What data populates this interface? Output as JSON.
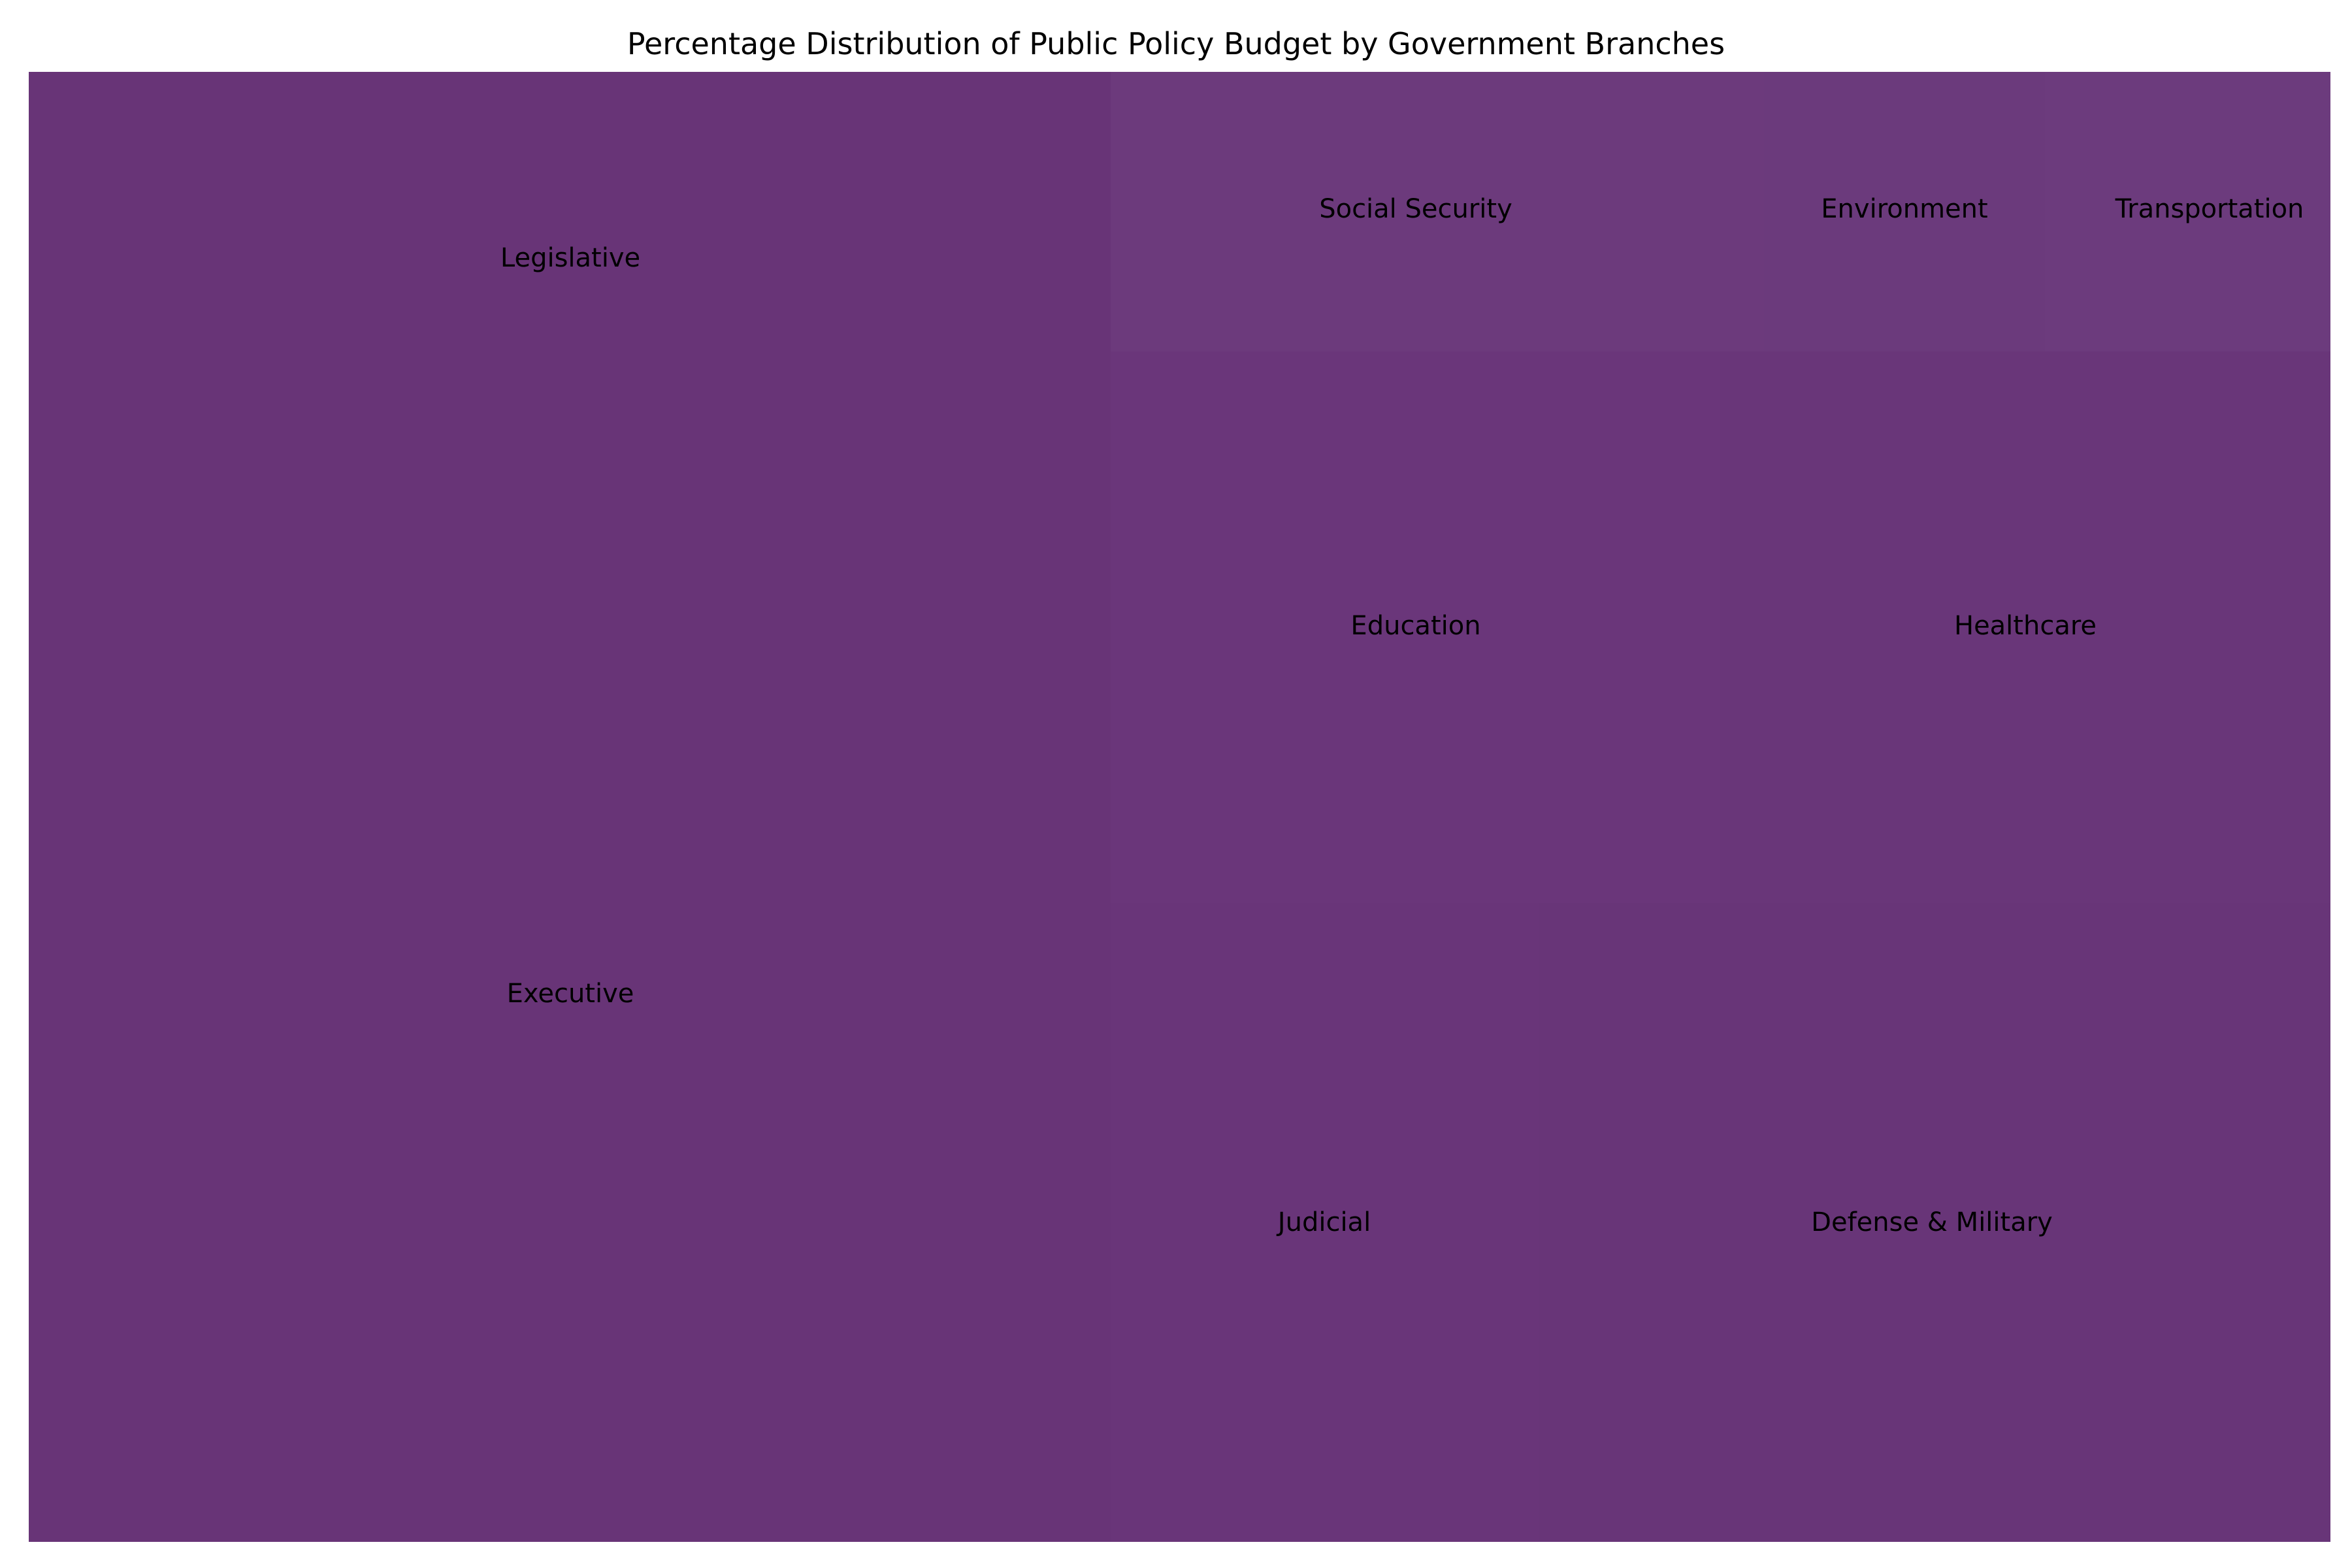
{
  "chart_data": {
    "type": "treemap",
    "title": "Percentage Distribution of Public Policy Budget by Government Branches",
    "base_color": "#68347a",
    "items": [
      {
        "name": "Legislative",
        "color": "#683477"
      },
      {
        "name": "Executive",
        "color": "#683477"
      },
      {
        "name": "Social Security",
        "color": "#6c3a7c"
      },
      {
        "name": "Environment",
        "color": "#6b3a7c"
      },
      {
        "name": "Transportation",
        "color": "#6c3b7d"
      },
      {
        "name": "Education",
        "color": "#6a367a"
      },
      {
        "name": "Healthcare",
        "color": "#693679"
      },
      {
        "name": "Judicial",
        "color": "#693579"
      },
      {
        "name": "Defense & Military",
        "color": "#683578"
      }
    ]
  }
}
